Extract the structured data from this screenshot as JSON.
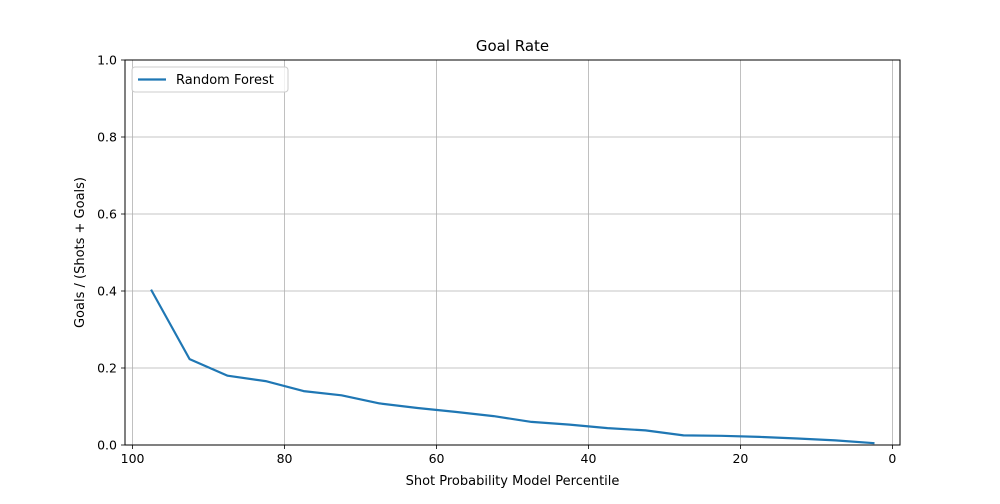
{
  "chart_data": {
    "type": "line",
    "title": "Goal Rate",
    "xlabel": "Shot Probability Model Percentile",
    "ylabel": "Goals / (Shots + Goals)",
    "xlim": [
      101,
      -1
    ],
    "ylim": [
      0.0,
      1.0
    ],
    "x_reversed": true,
    "grid": true,
    "legend_position": "upper-left",
    "x_ticks": [
      "100",
      "80",
      "60",
      "40",
      "20",
      "0"
    ],
    "x_tick_values": [
      100,
      80,
      60,
      40,
      20,
      0
    ],
    "y_ticks": [
      "0.0",
      "0.2",
      "0.4",
      "0.6",
      "0.8",
      "1.0"
    ],
    "y_tick_values": [
      0.0,
      0.2,
      0.4,
      0.6,
      0.8,
      1.0
    ],
    "series": [
      {
        "name": "Random Forest",
        "color": "#1f77b4",
        "x": [
          97.5,
          92.5,
          87.5,
          82.5,
          77.5,
          72.5,
          67.5,
          62.5,
          57.5,
          52.5,
          47.5,
          42.5,
          37.5,
          32.5,
          27.5,
          22.5,
          17.5,
          12.5,
          7.5,
          2.5
        ],
        "y": [
          0.401,
          0.223,
          0.18,
          0.166,
          0.14,
          0.129,
          0.108,
          0.096,
          0.086,
          0.075,
          0.06,
          0.053,
          0.044,
          0.038,
          0.025,
          0.024,
          0.021,
          0.017,
          0.012,
          0.005
        ]
      }
    ]
  }
}
